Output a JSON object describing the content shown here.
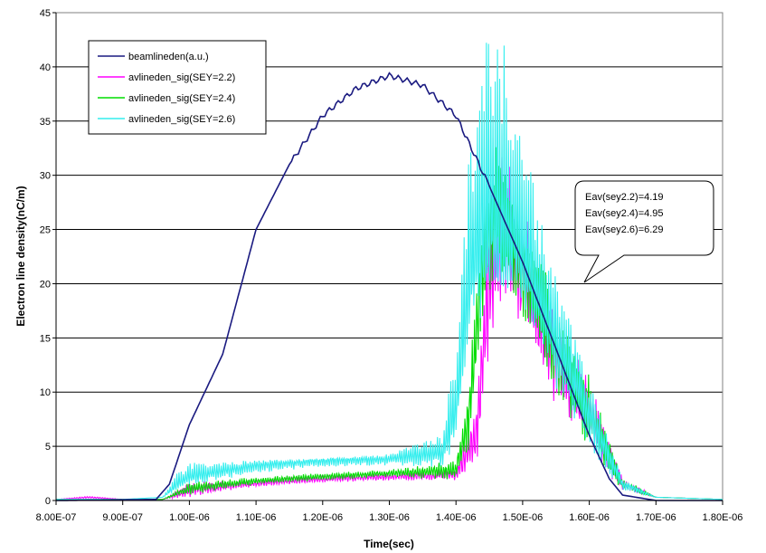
{
  "chart_data": {
    "type": "line",
    "xlabel": "Time(sec)",
    "ylabel": "Electron line density(nC/m)",
    "xlim": [
      8e-07,
      1.8e-06
    ],
    "ylim": [
      0,
      45
    ],
    "grid": "horizontal",
    "legend_position": "top-left",
    "x_ticks": [
      "8.00E-07",
      "9.00E-07",
      "1.00E-06",
      "1.10E-06",
      "1.20E-06",
      "1.30E-06",
      "1.40E-06",
      "1.50E-06",
      "1.60E-06",
      "1.70E-06",
      "1.80E-06"
    ],
    "y_ticks": [
      "0",
      "5",
      "10",
      "15",
      "20",
      "25",
      "30",
      "35",
      "40",
      "45"
    ],
    "callout": {
      "lines": [
        "Eav(sey2.2)=4.19",
        "Eav(sey2.4)=4.95",
        "Eav(sey2.6)=6.29"
      ]
    },
    "series": [
      {
        "name": "beamlineden(a.u.)",
        "color": "#1a1a80",
        "style": "smooth",
        "x": [
          8e-07,
          9.5e-07,
          9.7e-07,
          1e-06,
          1.05e-06,
          1.1e-06,
          1.15e-06,
          1.2e-06,
          1.25e-06,
          1.3e-06,
          1.35e-06,
          1.4e-06,
          1.45e-06,
          1.5e-06,
          1.55e-06,
          1.6e-06,
          1.63e-06,
          1.65e-06,
          1.7e-06,
          1.8e-06
        ],
        "y": [
          0,
          0.1,
          1.5,
          7,
          13.5,
          25,
          31,
          35.5,
          38,
          39.2,
          38.3,
          35.5,
          29,
          22,
          14,
          6,
          2,
          0.5,
          0,
          0
        ]
      },
      {
        "name": "avlineden_sig(SEY=2.2)",
        "color": "#ff00ff",
        "style": "noisy",
        "x": [
          8e-07,
          8.5e-07,
          9e-07,
          9.6e-07,
          1e-06,
          1.1e-06,
          1.2e-06,
          1.3e-06,
          1.4e-06,
          1.43e-06,
          1.45e-06,
          1.47e-06,
          1.5e-06,
          1.55e-06,
          1.6e-06,
          1.63e-06,
          1.65e-06,
          1.7e-06,
          1.8e-06
        ],
        "y": [
          0.1,
          0.3,
          0.1,
          0.1,
          1.0,
          1.6,
          2.0,
          2.2,
          2.4,
          6,
          20,
          26,
          21,
          13,
          8,
          4,
          1.5,
          0.3,
          0.1
        ],
        "amp": [
          0,
          0.1,
          0,
          0,
          0.6,
          0.3,
          0.3,
          0.3,
          0.5,
          3,
          7,
          6,
          5,
          4,
          3,
          1.5,
          0.5,
          0,
          0
        ]
      },
      {
        "name": "avlineden_sig(SEY=2.4)",
        "color": "#00dd00",
        "style": "noisy",
        "x": [
          8e-07,
          9e-07,
          9.6e-07,
          1e-06,
          1.1e-06,
          1.2e-06,
          1.3e-06,
          1.4e-06,
          1.42e-06,
          1.44e-06,
          1.46e-06,
          1.5e-06,
          1.55e-06,
          1.6e-06,
          1.63e-06,
          1.65e-06,
          1.7e-06,
          1.8e-06
        ],
        "y": [
          0.1,
          0.1,
          0.1,
          1.1,
          1.8,
          2.2,
          2.5,
          2.8,
          8,
          22,
          27,
          22,
          14,
          8,
          4,
          1.5,
          0.3,
          0.1
        ],
        "amp": [
          0,
          0,
          0,
          0.5,
          0.3,
          0.3,
          0.3,
          0.8,
          3,
          6,
          6,
          5,
          4,
          3,
          1.5,
          0.5,
          0,
          0
        ]
      },
      {
        "name": "avlineden_sig(SEY=2.6)",
        "color": "#33eeee",
        "style": "noisy",
        "x": [
          8e-07,
          9e-07,
          9.6e-07,
          9.8e-07,
          1e-06,
          1.1e-06,
          1.2e-06,
          1.3e-06,
          1.38e-06,
          1.4e-06,
          1.42e-06,
          1.45e-06,
          1.48e-06,
          1.5e-06,
          1.55e-06,
          1.6e-06,
          1.63e-06,
          1.65e-06,
          1.7e-06,
          1.8e-06
        ],
        "y": [
          0.1,
          0.1,
          0.3,
          1.5,
          2.3,
          3.2,
          3.6,
          3.8,
          4.5,
          9,
          22,
          28,
          27,
          24,
          15,
          8,
          4,
          1.5,
          0.3,
          0.1
        ],
        "amp": [
          0,
          0,
          0,
          0.8,
          1.0,
          0.6,
          0.4,
          0.5,
          1.5,
          5,
          9,
          15,
          12,
          8,
          5,
          3,
          1.5,
          0.5,
          0,
          0
        ]
      }
    ]
  }
}
